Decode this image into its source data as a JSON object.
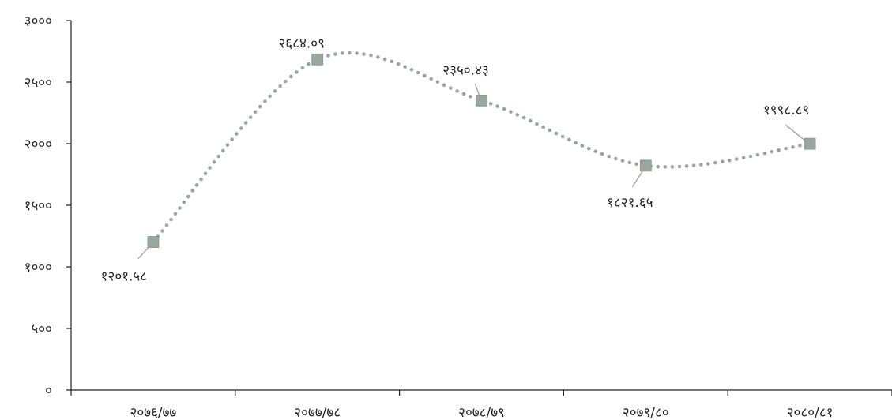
{
  "chart_data": {
    "type": "line",
    "title": "",
    "xlabel": "",
    "ylabel": "",
    "categories": [
      "२०७६/७७",
      "२०७७/७८",
      "२०७८/७९",
      "२०७९/८०",
      "२०८०/८१"
    ],
    "values": [
      1201.58,
      2684.09,
      2350.43,
      1821.65,
      1998.89
    ],
    "data_labels": [
      "१२०१.५८",
      "२६८४.०९",
      "२३५०.४३",
      "१८२१.६५",
      "१९९८.८९"
    ],
    "ylim": [
      0,
      3000
    ],
    "yticks": [
      0,
      500,
      1000,
      1500,
      2000,
      2500,
      3000
    ],
    "ytick_labels": [
      "०",
      "५००",
      "१०००",
      "१५००",
      "२०००",
      "२५००",
      "३०००"
    ],
    "line_style": "dotted smooth",
    "marker": "square",
    "legend": "none",
    "grid": false,
    "colors": {
      "series": "#98a69b",
      "axis": "#222222",
      "leader": "#9e9e9e"
    }
  }
}
